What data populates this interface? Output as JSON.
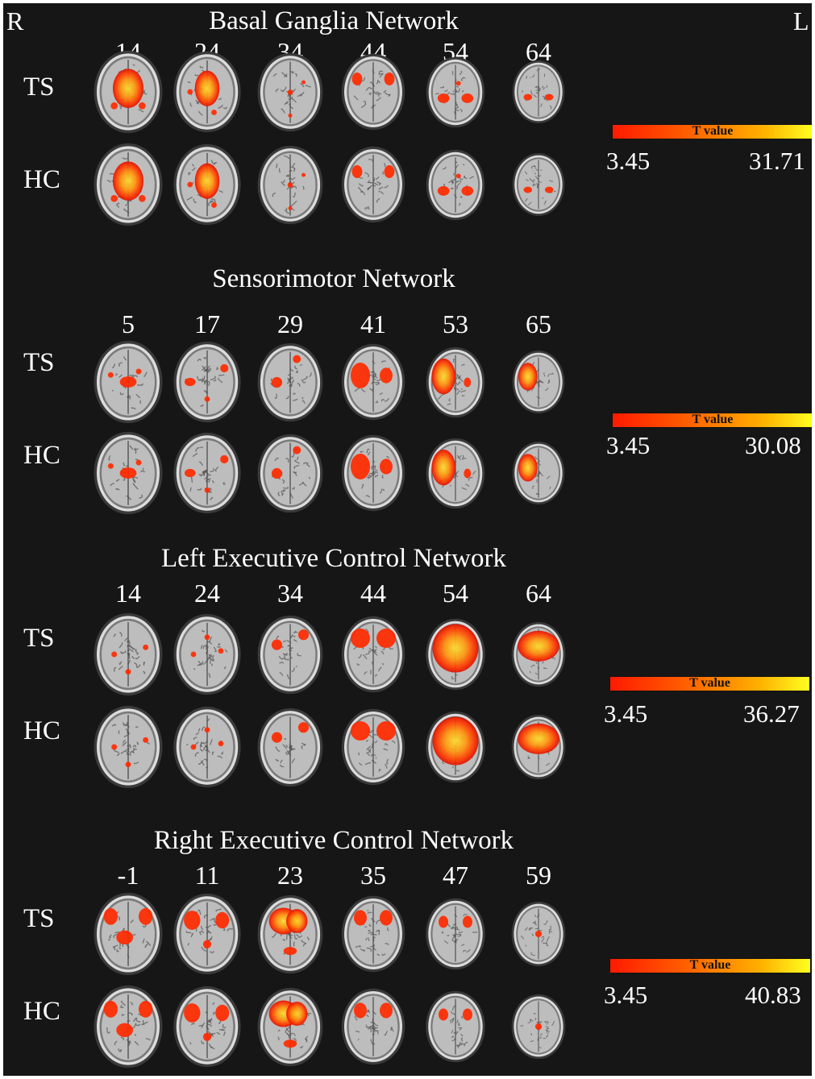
{
  "orientation": {
    "right": "R",
    "left": "L"
  },
  "groups": [
    "TS",
    "HC"
  ],
  "colorbar_title": "T value",
  "colors": {
    "background": "#161616",
    "text": "#ffffff",
    "colormap_low": "#ff1a00",
    "colormap_high": "#ffff20"
  },
  "panels": [
    {
      "title": "Basal Ganglia Network",
      "slices": [
        "14",
        "24",
        "34",
        "44",
        "54",
        "64"
      ],
      "tmin": "3.45",
      "tmax": "31.71"
    },
    {
      "title": "Sensorimotor Network",
      "slices": [
        "5",
        "17",
        "29",
        "41",
        "53",
        "65"
      ],
      "tmin": "3.45",
      "tmax": "30.08"
    },
    {
      "title": "Left Executive Control Network",
      "slices": [
        "14",
        "24",
        "34",
        "44",
        "54",
        "64"
      ],
      "tmin": "3.45",
      "tmax": "36.27"
    },
    {
      "title": "Right Executive Control Network",
      "slices": [
        "-1",
        "11",
        "23",
        "35",
        "47",
        "59"
      ],
      "tmin": "3.45",
      "tmax": "40.83"
    }
  ]
}
